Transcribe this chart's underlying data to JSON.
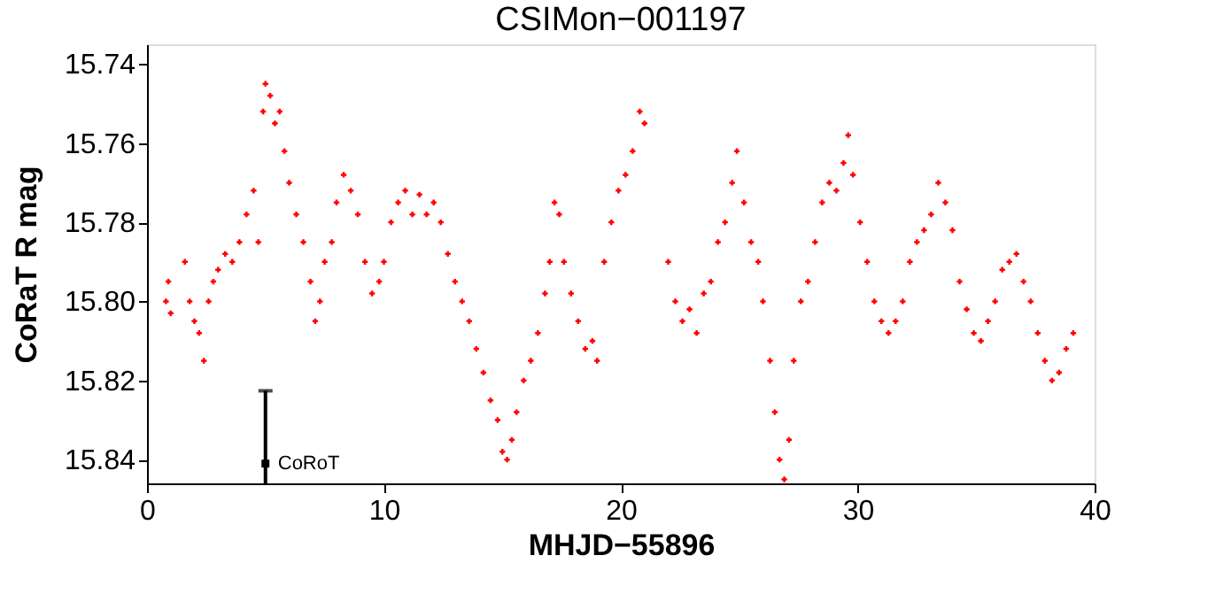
{
  "chart_data": {
    "type": "scatter",
    "title": "CSIMon−001197",
    "xlabel": "MHJD−55896",
    "ylabel": "CoRaT R mag",
    "xlim": [
      0,
      40
    ],
    "xticks": [
      0,
      10,
      20,
      30,
      40
    ],
    "ylim": [
      15.846,
      15.735
    ],
    "yticks": [
      15.74,
      15.76,
      15.78,
      {
        "value": 15.8,
        "label": "15.80"
      },
      15.82,
      15.84
    ],
    "grid": false,
    "series": [
      {
        "color": "#ff0000",
        "marker": "cross",
        "x": [
          0.8,
          0.9,
          1.0,
          1.6,
          1.8,
          2.0,
          2.2,
          2.4,
          2.6,
          2.8,
          3.0,
          3.3,
          3.6,
          3.9,
          4.2,
          4.5,
          4.7,
          4.9,
          5.0,
          5.2,
          5.4,
          5.6,
          5.8,
          6.0,
          6.3,
          6.6,
          6.9,
          7.1,
          7.3,
          7.5,
          7.8,
          8.0,
          8.3,
          8.6,
          8.9,
          9.2,
          9.5,
          9.8,
          10.0,
          10.3,
          10.6,
          10.9,
          11.2,
          11.5,
          11.8,
          12.1,
          12.4,
          12.7,
          13.0,
          13.3,
          13.6,
          13.9,
          14.2,
          14.5,
          14.8,
          15.0,
          15.2,
          15.4,
          15.6,
          15.9,
          16.2,
          16.5,
          16.8,
          17.0,
          17.2,
          17.4,
          17.6,
          17.9,
          18.2,
          18.5,
          18.8,
          19.0,
          19.3,
          19.6,
          19.9,
          20.2,
          20.5,
          20.8,
          21.0,
          22.0,
          22.3,
          22.6,
          22.9,
          23.2,
          23.5,
          23.8,
          24.1,
          24.4,
          24.7,
          24.9,
          25.2,
          25.5,
          25.8,
          26.0,
          26.3,
          26.5,
          26.7,
          26.9,
          27.1,
          27.3,
          27.6,
          27.9,
          28.2,
          28.5,
          28.8,
          29.1,
          29.4,
          29.6,
          29.8,
          30.1,
          30.4,
          30.7,
          31.0,
          31.3,
          31.6,
          31.9,
          32.2,
          32.5,
          32.8,
          33.1,
          33.4,
          33.7,
          34.0,
          34.3,
          34.6,
          34.9,
          35.2,
          35.5,
          35.8,
          36.1,
          36.4,
          36.7,
          37.0,
          37.3,
          37.6,
          37.9,
          38.2,
          38.5,
          38.8,
          39.1
        ],
        "values": [
          15.8,
          15.795,
          15.803,
          15.79,
          15.8,
          15.805,
          15.808,
          15.815,
          15.8,
          15.795,
          15.792,
          15.788,
          15.79,
          15.785,
          15.778,
          15.772,
          15.785,
          15.752,
          15.745,
          15.748,
          15.755,
          15.752,
          15.762,
          15.77,
          15.778,
          15.785,
          15.795,
          15.805,
          15.8,
          15.79,
          15.785,
          15.775,
          15.768,
          15.772,
          15.778,
          15.79,
          15.798,
          15.795,
          15.79,
          15.78,
          15.775,
          15.772,
          15.778,
          15.773,
          15.778,
          15.775,
          15.78,
          15.788,
          15.795,
          15.8,
          15.805,
          15.812,
          15.818,
          15.825,
          15.83,
          15.838,
          15.84,
          15.835,
          15.828,
          15.82,
          15.815,
          15.808,
          15.798,
          15.79,
          15.775,
          15.778,
          15.79,
          15.798,
          15.805,
          15.812,
          15.81,
          15.815,
          15.79,
          15.78,
          15.772,
          15.768,
          15.762,
          15.752,
          15.755,
          15.79,
          15.8,
          15.805,
          15.802,
          15.808,
          15.798,
          15.795,
          15.785,
          15.78,
          15.77,
          15.762,
          15.775,
          15.785,
          15.79,
          15.8,
          15.815,
          15.828,
          15.84,
          15.845,
          15.835,
          15.815,
          15.8,
          15.795,
          15.785,
          15.775,
          15.77,
          15.772,
          15.765,
          15.758,
          15.768,
          15.78,
          15.79,
          15.8,
          15.805,
          15.808,
          15.805,
          15.8,
          15.79,
          15.785,
          15.782,
          15.778,
          15.77,
          15.775,
          15.782,
          15.795,
          15.802,
          15.808,
          15.81,
          15.805,
          15.8,
          15.792,
          15.79,
          15.788,
          15.795,
          15.8,
          15.808,
          15.815,
          15.82,
          15.818,
          15.812,
          15.808
        ]
      },
      {
        "name": "CoRoT",
        "color": "#000000",
        "marker": "square",
        "x": [
          5
        ],
        "values": [
          15.841
        ],
        "errors": [
          [
            15.8226,
            15.846
          ]
        ]
      }
    ]
  }
}
